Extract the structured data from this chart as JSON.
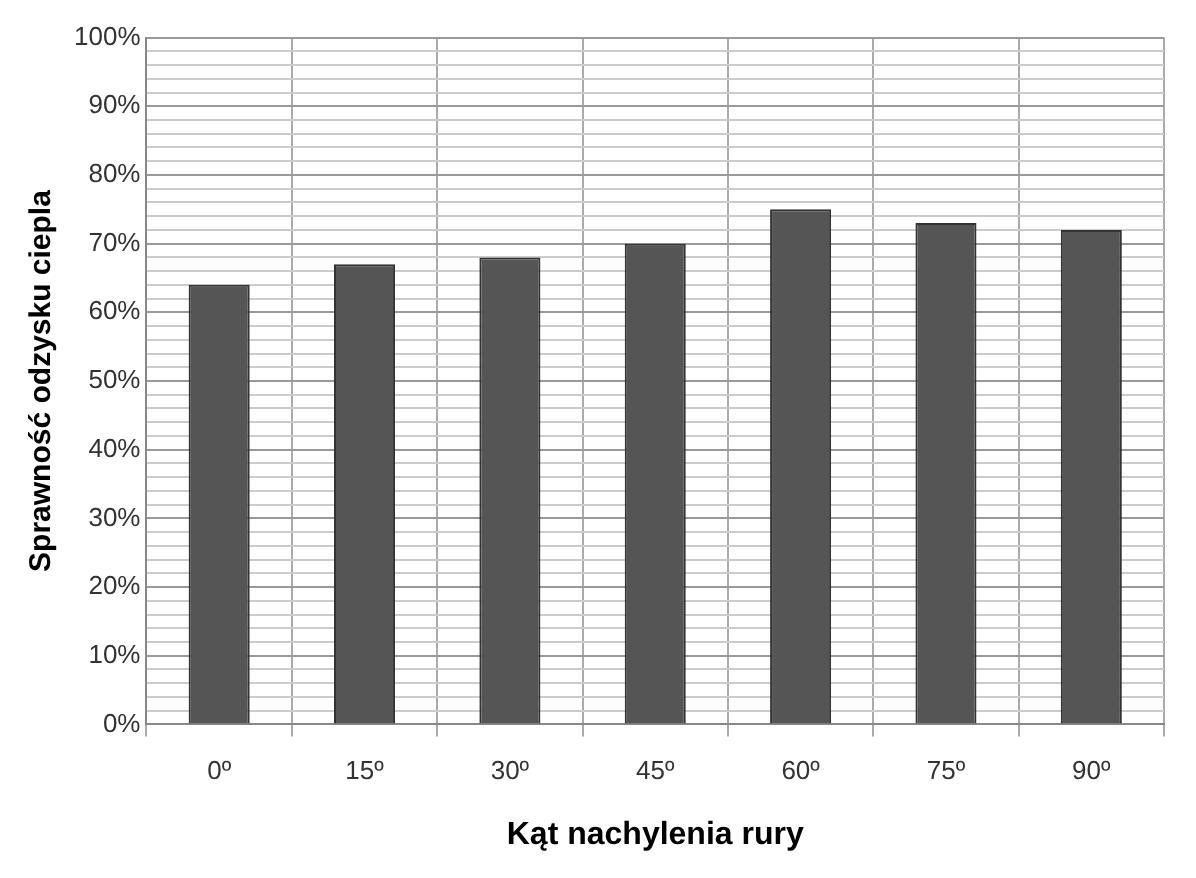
{
  "chart_data": {
    "type": "bar",
    "xlabel": "Kąt nachylenia rury",
    "ylabel": "Sprawność odzysku ciepla",
    "categories": [
      "0º",
      "15º",
      "30º",
      "45º",
      "60º",
      "75º",
      "90º"
    ],
    "values": [
      64,
      67,
      68,
      70,
      75,
      73,
      72
    ],
    "color": "#555555",
    "ylim": [
      0,
      100
    ],
    "yticks": [
      {
        "value": 0,
        "label": "0%"
      },
      {
        "value": 2,
        "label": null
      },
      {
        "value": 4,
        "label": null
      },
      {
        "value": 6,
        "label": null
      },
      {
        "value": 8,
        "label": null
      },
      {
        "value": 10,
        "label": "10%"
      },
      {
        "value": 12,
        "label": null
      },
      {
        "value": 14,
        "label": null
      },
      {
        "value": 16,
        "label": null
      },
      {
        "value": 18,
        "label": null
      },
      {
        "value": 20,
        "label": "20%"
      },
      {
        "value": 22,
        "label": null
      },
      {
        "value": 24,
        "label": null
      },
      {
        "value": 26,
        "label": null
      },
      {
        "value": 28,
        "label": null
      },
      {
        "value": 30,
        "label": "30%"
      },
      {
        "value": 32,
        "label": null
      },
      {
        "value": 34,
        "label": null
      },
      {
        "value": 36,
        "label": null
      },
      {
        "value": 38,
        "label": null
      },
      {
        "value": 40,
        "label": "40%"
      },
      {
        "value": 42,
        "label": null
      },
      {
        "value": 44,
        "label": null
      },
      {
        "value": 46,
        "label": null
      },
      {
        "value": 48,
        "label": null
      },
      {
        "value": 50,
        "label": "50%"
      },
      {
        "value": 52,
        "label": null
      },
      {
        "value": 54,
        "label": null
      },
      {
        "value": 56,
        "label": null
      },
      {
        "value": 58,
        "label": null
      },
      {
        "value": 60,
        "label": "60%"
      },
      {
        "value": 62,
        "label": null
      },
      {
        "value": 64,
        "label": null
      },
      {
        "value": 66,
        "label": null
      },
      {
        "value": 68,
        "label": null
      },
      {
        "value": 70,
        "label": "70%"
      },
      {
        "value": 72,
        "label": null
      },
      {
        "value": 74,
        "label": null
      },
      {
        "value": 76,
        "label": null
      },
      {
        "value": 78,
        "label": null
      },
      {
        "value": 80,
        "label": "80%"
      },
      {
        "value": 82,
        "label": null
      },
      {
        "value": 84,
        "label": null
      },
      {
        "value": 86,
        "label": null
      },
      {
        "value": 88,
        "label": null
      },
      {
        "value": 90,
        "label": "90%"
      },
      {
        "value": 92,
        "label": null
      },
      {
        "value": 94,
        "label": null
      },
      {
        "value": 96,
        "label": null
      },
      {
        "value": 98,
        "label": null
      },
      {
        "value": 100,
        "label": "100%"
      }
    ],
    "grid": true
  }
}
